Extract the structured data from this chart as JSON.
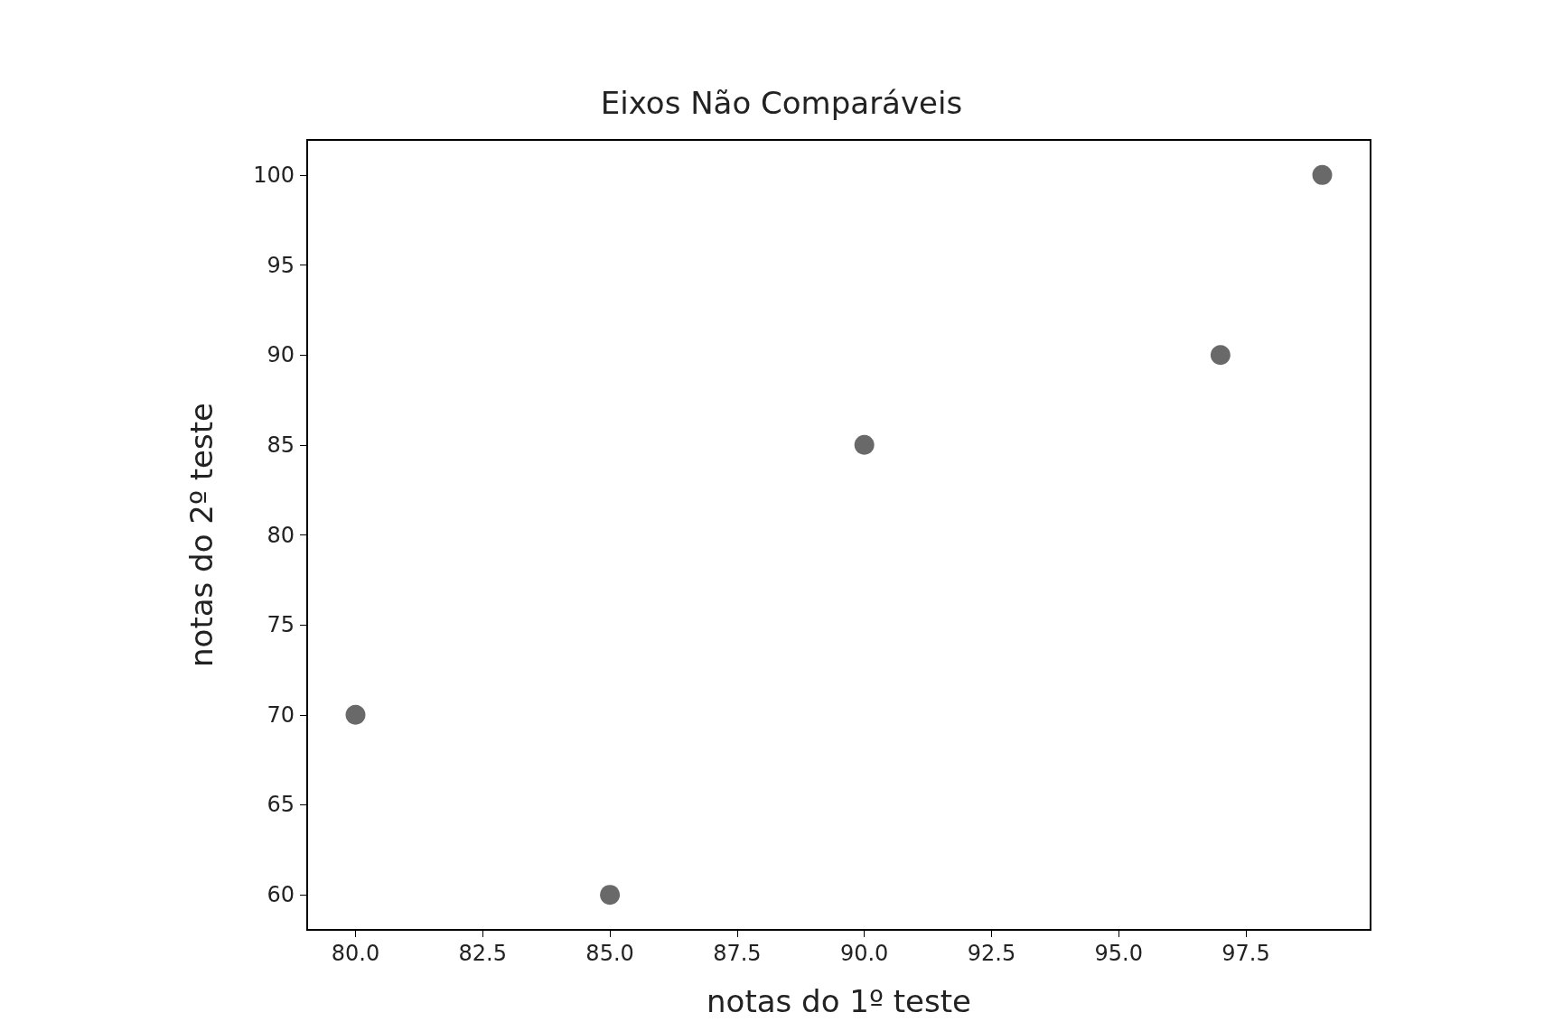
{
  "chart_data": {
    "type": "scatter",
    "title": "Eixos Não Comparáveis",
    "xlabel": "notas do 1º teste",
    "ylabel": "notas do 2º teste",
    "x": [
      80,
      85,
      90,
      97,
      99
    ],
    "series": [
      {
        "color": "#444444",
        "values": [
          70,
          60,
          85,
          90,
          100
        ]
      }
    ],
    "xlim": [
      79.05,
      99.95
    ],
    "ylim": [
      58.05,
      101.95
    ],
    "xticks": [
      {
        "value": 80,
        "label": "80.0"
      },
      {
        "value": 82.5,
        "label": "82.5"
      },
      {
        "value": 85,
        "label": "85.0"
      },
      {
        "value": 87.5,
        "label": "87.5"
      },
      {
        "value": 90,
        "label": "90.0"
      },
      {
        "value": 92.5,
        "label": "92.5"
      },
      {
        "value": 95,
        "label": "95.0"
      },
      {
        "value": 97.5,
        "label": "97.5"
      }
    ],
    "yticks": [
      60,
      65,
      70,
      75,
      80,
      85,
      90,
      95,
      100
    ],
    "marker": "circle"
  }
}
